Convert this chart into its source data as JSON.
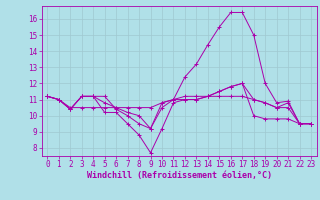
{
  "background_color": "#b0e0e8",
  "line_color": "#aa00aa",
  "grid_color": "#a0c8d0",
  "xlabel": "Windchill (Refroidissement éolien,°C)",
  "xlabel_fontsize": 6.0,
  "tick_fontsize": 5.5,
  "xlim": [
    -0.5,
    23.5
  ],
  "ylim": [
    7.5,
    16.8
  ],
  "yticks": [
    8,
    9,
    10,
    11,
    12,
    13,
    14,
    15,
    16
  ],
  "xticks": [
    0,
    1,
    2,
    3,
    4,
    5,
    6,
    7,
    8,
    9,
    10,
    11,
    12,
    13,
    14,
    15,
    16,
    17,
    18,
    19,
    20,
    21,
    22,
    23
  ],
  "series": [
    [
      11.2,
      11.0,
      10.4,
      11.2,
      11.2,
      11.2,
      10.4,
      10.0,
      9.5,
      9.2,
      10.8,
      11.0,
      12.4,
      13.2,
      14.4,
      15.5,
      16.4,
      16.4,
      15.0,
      12.0,
      10.8,
      10.9,
      9.5,
      9.5
    ],
    [
      11.2,
      11.0,
      10.4,
      11.2,
      11.2,
      10.2,
      10.2,
      9.5,
      8.8,
      7.7,
      9.2,
      10.8,
      11.0,
      11.0,
      11.2,
      11.5,
      11.8,
      12.0,
      10.0,
      9.8,
      9.8,
      9.8,
      9.5,
      9.5
    ],
    [
      11.2,
      11.0,
      10.4,
      11.2,
      11.2,
      10.8,
      10.5,
      10.2,
      10.0,
      9.2,
      10.5,
      11.0,
      11.0,
      11.0,
      11.2,
      11.5,
      11.8,
      12.0,
      11.0,
      10.8,
      10.5,
      10.8,
      9.5,
      9.5
    ],
    [
      11.2,
      11.0,
      10.5,
      10.5,
      10.5,
      10.5,
      10.5,
      10.5,
      10.5,
      10.5,
      10.8,
      11.0,
      11.2,
      11.2,
      11.2,
      11.2,
      11.2,
      11.2,
      11.0,
      10.8,
      10.5,
      10.5,
      9.5,
      9.5
    ]
  ]
}
